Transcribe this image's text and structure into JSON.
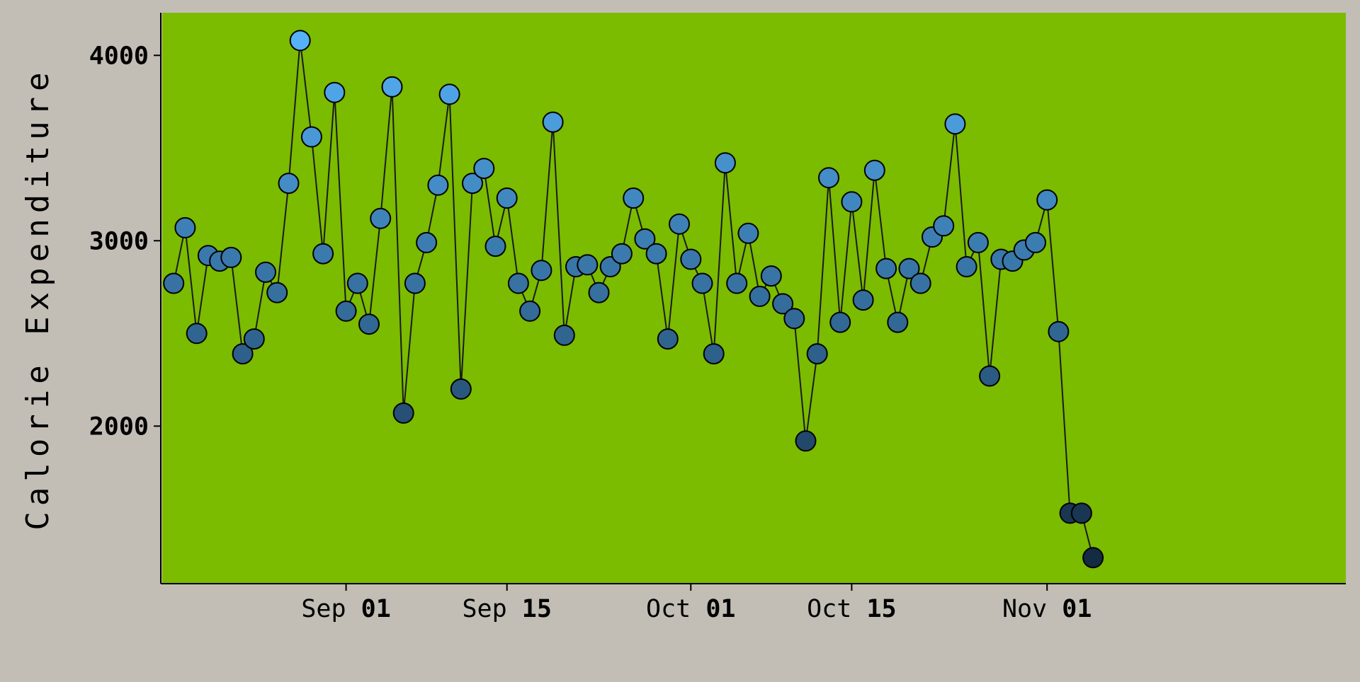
{
  "chart_data": {
    "type": "line",
    "ylabel": "Calorie Expenditure",
    "xlabel": "",
    "ylim": [
      1150,
      4230
    ],
    "xlim": [
      "2016-08-16",
      "2016-11-27"
    ],
    "x_ticks": [
      {
        "date": "2016-09-01",
        "month": "Sep",
        "day": "01"
      },
      {
        "date": "2016-09-15",
        "month": "Sep",
        "day": "15"
      },
      {
        "date": "2016-10-01",
        "month": "Oct",
        "day": "01"
      },
      {
        "date": "2016-10-15",
        "month": "Oct",
        "day": "15"
      },
      {
        "date": "2016-11-01",
        "month": "Nov",
        "day": "01"
      }
    ],
    "y_ticks": [
      2000,
      3000,
      4000
    ],
    "grid": false,
    "legend": "none",
    "colors": {
      "panel_background": "#7bbb00",
      "page_background": "#c2beb6",
      "line": "#1a1a1a",
      "point_low": "#132b43",
      "point_high": "#56b1f7",
      "point_outline": "#000000"
    },
    "series": [
      {
        "start_date": "2016-08-17",
        "values": [
          2770,
          3070,
          2500,
          2920,
          2890,
          2910,
          2390,
          2470,
          2830,
          2720,
          3310,
          4080,
          3560,
          2930,
          3800,
          2620,
          2770,
          2550,
          3120,
          3830,
          2070,
          2770,
          2990,
          3300,
          3790,
          2200,
          3310,
          3390,
          2970,
          3230,
          2770,
          2620,
          2840,
          3640,
          2490,
          2860,
          2870,
          2720,
          2860,
          2930,
          3230,
          3010,
          2930,
          2470,
          3090,
          2900,
          2770,
          2390,
          3420,
          2770,
          3040,
          2700,
          2810,
          2660,
          2580,
          1920,
          2390,
          3340,
          2560,
          3210,
          2680,
          3380,
          2850,
          2560,
          2850,
          2770,
          3020,
          3080,
          3630,
          2860,
          2990,
          2270,
          2900,
          2890,
          2950,
          2990,
          3220,
          2510,
          1530,
          1530,
          1290
        ]
      }
    ]
  }
}
